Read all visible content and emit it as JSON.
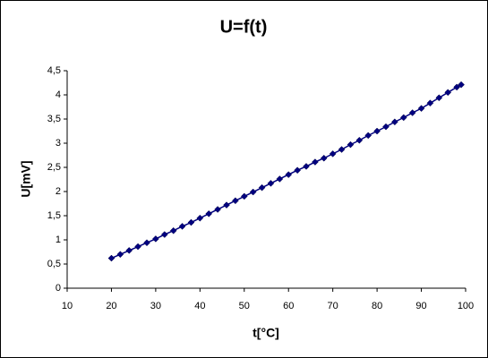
{
  "chart_data": {
    "type": "scatter",
    "title": "U=f(t)",
    "x_label": "t[°C]",
    "y_label": "U[mV]",
    "x": [
      20,
      22,
      24,
      26,
      28,
      30,
      32,
      34,
      36,
      38,
      40,
      42,
      44,
      46,
      48,
      50,
      52,
      54,
      56,
      58,
      60,
      62,
      64,
      66,
      68,
      70,
      72,
      74,
      76,
      78,
      80,
      82,
      84,
      86,
      88,
      90,
      92,
      94,
      96,
      98,
      99
    ],
    "series": [
      {
        "color": "#000080",
        "values": [
          0.62,
          0.7,
          0.78,
          0.86,
          0.94,
          1.02,
          1.11,
          1.19,
          1.28,
          1.36,
          1.45,
          1.54,
          1.63,
          1.72,
          1.81,
          1.9,
          1.99,
          2.08,
          2.17,
          2.26,
          2.35,
          2.44,
          2.52,
          2.61,
          2.69,
          2.78,
          2.87,
          2.97,
          3.06,
          3.16,
          3.25,
          3.34,
          3.44,
          3.53,
          3.63,
          3.72,
          3.83,
          3.94,
          4.05,
          4.16,
          4.21
        ]
      }
    ],
    "xlim": [
      10,
      100
    ],
    "xticks": [
      10,
      20,
      30,
      40,
      50,
      60,
      70,
      80,
      90,
      100
    ],
    "ylim": [
      0,
      4.5
    ],
    "yticks": [
      0,
      {
        "value": 0.5,
        "label": "0,5"
      },
      1,
      {
        "value": 1.5,
        "label": "1,5"
      },
      2,
      {
        "value": 2.5,
        "label": "2,5"
      },
      3,
      {
        "value": 3.5,
        "label": "3,5"
      },
      4,
      {
        "value": 4.5,
        "label": "4,5"
      }
    ],
    "grid": false
  }
}
